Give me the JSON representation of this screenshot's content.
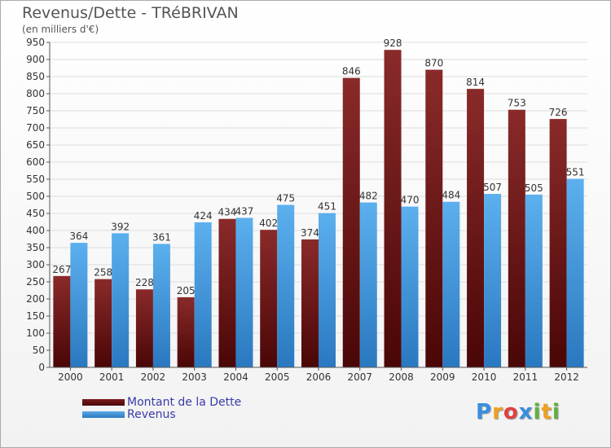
{
  "chart_data": {
    "type": "bar",
    "title": "Revenus/Dette - TRéBRIVAN",
    "subtitle": "(en milliers d'€)",
    "categories": [
      "2000",
      "2001",
      "2002",
      "2003",
      "2004",
      "2005",
      "2006",
      "2007",
      "2008",
      "2009",
      "2010",
      "2011",
      "2012"
    ],
    "series": [
      {
        "name": "Montant de la Dette",
        "values": [
          267,
          258,
          228,
          205,
          434,
          402,
          374,
          846,
          928,
          870,
          814,
          753,
          726
        ]
      },
      {
        "name": "Revenus",
        "values": [
          364,
          392,
          361,
          424,
          437,
          475,
          451,
          482,
          470,
          484,
          507,
          505,
          551
        ]
      }
    ],
    "ylim": [
      0,
      950
    ],
    "ytick_step": 50,
    "grid": true,
    "legend_position": "bottom-left"
  },
  "colors": {
    "dette_top": "#8a2a2a",
    "dette_bottom": "#4a0606",
    "revenus_top": "#5cb0ee",
    "revenus_bottom": "#2a78c0",
    "grid": "#dddddd",
    "axis_text": "#333333"
  },
  "legend": {
    "dette_label": "Montant de la Dette",
    "revenus_label": "Revenus"
  },
  "logo": {
    "letters": [
      "P",
      "r",
      "o",
      "x",
      "i",
      "t",
      "i"
    ],
    "colors": [
      "#3a8ee0",
      "#f0a020",
      "#e04040",
      "#3a8ee0",
      "#60b040",
      "#f0a020",
      "#60b040"
    ]
  }
}
